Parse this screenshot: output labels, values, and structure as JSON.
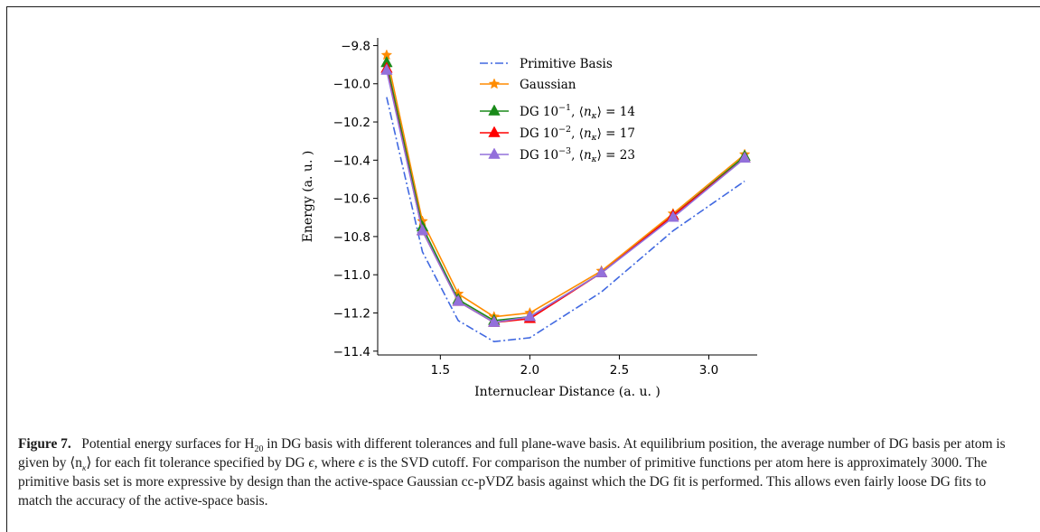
{
  "chart_data": {
    "type": "line",
    "xlabel": "Internuclear Distance (a. u. )",
    "ylabel": "Energy (a. u. )",
    "xlim": [
      1.15,
      3.27
    ],
    "ylim": [
      -11.42,
      -9.76
    ],
    "x_ticks": [
      1.5,
      2.0,
      2.5,
      3.0
    ],
    "x_tick_labels": [
      "1.5",
      "2.0",
      "2.5",
      "3.0"
    ],
    "y_ticks": [
      -9.8,
      -10.0,
      -10.2,
      -10.4,
      -10.6,
      -10.8,
      -11.0,
      -11.2,
      -11.4
    ],
    "y_tick_labels": [
      "−9.8",
      "−10.0",
      "−10.2",
      "−10.4",
      "−10.6",
      "−10.8",
      "−11.0",
      "−11.2",
      "−11.4"
    ],
    "grid": false,
    "legend_position": "top-right",
    "series": [
      {
        "name": "Primitive Basis",
        "color": "#4169e1",
        "style": "dashdot",
        "marker": "none",
        "x": [
          1.2,
          1.4,
          1.6,
          1.8,
          2.0,
          2.4,
          2.8,
          3.2
        ],
        "y": [
          -10.07,
          -10.88,
          -11.24,
          -11.35,
          -11.33,
          -11.09,
          -10.77,
          -10.51
        ]
      },
      {
        "name": "Gaussian",
        "color": "#ff8c00",
        "style": "solid",
        "marker": "star",
        "x": [
          1.2,
          1.4,
          1.6,
          1.8,
          2.0,
          2.4,
          2.8,
          3.2
        ],
        "y": [
          -9.85,
          -10.72,
          -11.1,
          -11.22,
          -11.2,
          -10.98,
          -10.68,
          -10.37
        ]
      },
      {
        "name": "DG 10⁻¹, ⟨n_κ⟩ = 14",
        "color": "#1a8a1a",
        "style": "solid",
        "marker": "triangle",
        "x": [
          1.2,
          1.4,
          1.6,
          1.8,
          2.0,
          2.4,
          2.8,
          3.2
        ],
        "y": [
          -9.89,
          -10.75,
          -11.13,
          -11.24,
          -11.22,
          -10.99,
          -10.69,
          -10.38
        ]
      },
      {
        "name": "DG 10⁻², ⟨n_κ⟩ = 17",
        "color": "#ff0000",
        "style": "solid",
        "marker": "triangle",
        "x": [
          1.2,
          1.4,
          1.6,
          1.8,
          2.0,
          2.4,
          2.8,
          3.2
        ],
        "y": [
          -9.92,
          -10.77,
          -11.14,
          -11.25,
          -11.23,
          -10.99,
          -10.69,
          -10.39
        ]
      },
      {
        "name": "DG 10⁻³, ⟨n_κ⟩ = 23",
        "color": "#9370db",
        "style": "solid",
        "marker": "triangle",
        "x": [
          1.2,
          1.4,
          1.6,
          1.8,
          2.0,
          2.4,
          2.8,
          3.2
        ],
        "y": [
          -9.93,
          -10.77,
          -11.14,
          -11.25,
          -11.22,
          -10.99,
          -10.7,
          -10.39
        ]
      }
    ]
  },
  "legend_items": [
    {
      "prefix": "Primitive Basis"
    },
    {
      "prefix": "Gaussian"
    },
    {
      "prefix": "DG 10",
      "exp": "−1",
      "count": "14"
    },
    {
      "prefix": "DG 10",
      "exp": "−2",
      "count": "17"
    },
    {
      "prefix": "DG 10",
      "exp": "−3",
      "count": "23"
    }
  ],
  "caption": {
    "figure_label": "Figure 7.",
    "p1": "Potential energy surfaces for H",
    "p1_sub": "20",
    "p2": " in DG basis with different tolerances and full plane-wave basis. At equilibrium position, the average number of DG basis per atom is given by ⟨n",
    "p2_sub": "κ",
    "p3": "⟩ for each fit tolerance specified by DG ",
    "eps1": "ϵ",
    "p4": ", where ",
    "eps2": "ϵ",
    "p5": " is the SVD cutoff. For comparison the number of primitive functions per atom here is approximately 3000. The primitive basis set is more expressive by design than the active-space Gaussian cc-pVDZ basis against which the DG fit is performed. This allows even fairly loose DG fits to match the accuracy of the active-space basis."
  }
}
